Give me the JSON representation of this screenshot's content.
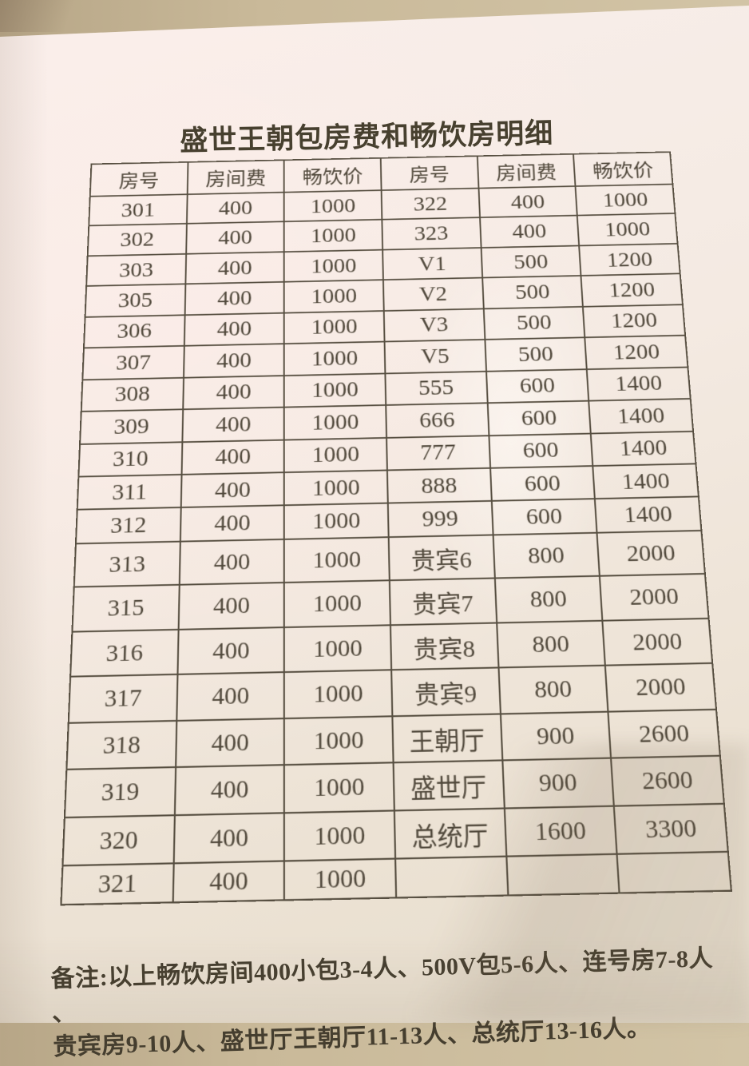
{
  "title": "盛世王朝包房费和畅饮房明细",
  "table": {
    "headers": [
      "房号",
      "房间费",
      "畅饮价",
      "房号",
      "房间费",
      "畅饮价"
    ],
    "rows": [
      [
        "301",
        "400",
        "1000",
        "322",
        "400",
        "1000"
      ],
      [
        "302",
        "400",
        "1000",
        "323",
        "400",
        "1000"
      ],
      [
        "303",
        "400",
        "1000",
        "V1",
        "500",
        "1200"
      ],
      [
        "305",
        "400",
        "1000",
        "V2",
        "500",
        "1200"
      ],
      [
        "306",
        "400",
        "1000",
        "V3",
        "500",
        "1200"
      ],
      [
        "307",
        "400",
        "1000",
        "V5",
        "500",
        "1200"
      ],
      [
        "308",
        "400",
        "1000",
        "555",
        "600",
        "1400"
      ],
      [
        "309",
        "400",
        "1000",
        "666",
        "600",
        "1400"
      ],
      [
        "310",
        "400",
        "1000",
        "777",
        "600",
        "1400"
      ],
      [
        "311",
        "400",
        "1000",
        "888",
        "600",
        "1400"
      ],
      [
        "312",
        "400",
        "1000",
        "999",
        "600",
        "1400"
      ],
      [
        "313",
        "400",
        "1000",
        "贵宾6",
        "800",
        "2000"
      ],
      [
        "315",
        "400",
        "1000",
        "贵宾7",
        "800",
        "2000"
      ],
      [
        "316",
        "400",
        "1000",
        "贵宾8",
        "800",
        "2000"
      ],
      [
        "317",
        "400",
        "1000",
        "贵宾9",
        "800",
        "2000"
      ],
      [
        "318",
        "400",
        "1000",
        "王朝厅",
        "900",
        "2600"
      ],
      [
        "319",
        "400",
        "1000",
        "盛世厅",
        "900",
        "2600"
      ],
      [
        "320",
        "400",
        "1000",
        "总统厅",
        "1600",
        "3300"
      ],
      [
        "321",
        "400",
        "1000",
        "",
        "",
        ""
      ]
    ]
  },
  "notes": {
    "line1": "备注:以上畅饮房间400小包3-4人、500V包5-6人、连号房7-8人  、",
    "line2": "贵宾房9-10人、盛世厅王朝厅11-13人、总统厅13-16人。"
  },
  "colors": {
    "paper": "#f4eae3",
    "ink": "#51493c",
    "table_border": "#564e40",
    "backdrop": "#c9b999"
  }
}
